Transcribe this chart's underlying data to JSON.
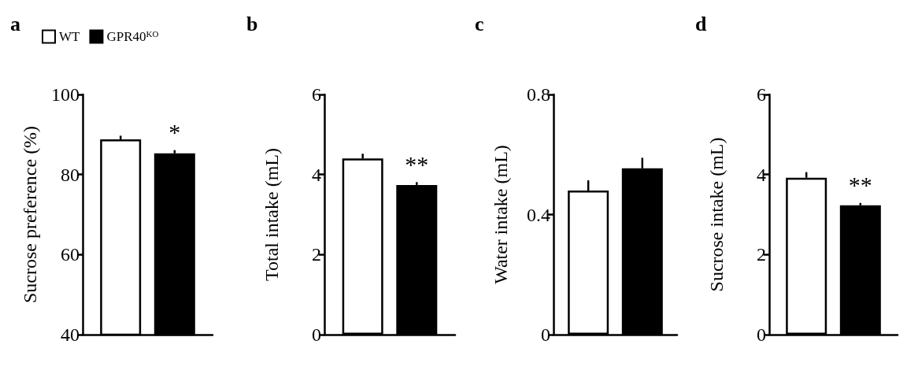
{
  "chart_data": [
    {
      "type": "bar",
      "title": "a",
      "ylabel": "Sucrose preference (%)",
      "categories": [
        null
      ],
      "ylim": [
        40,
        100
      ],
      "yticks": [
        40,
        60,
        80,
        100
      ],
      "legend": "top",
      "grid": false,
      "annotations": [
        "*"
      ],
      "series": [
        {
          "name": "WT",
          "color": "#ffffff",
          "values": [
            88.8
          ],
          "errors": [
            [
              88.8,
              89.7
            ]
          ]
        },
        {
          "name": "GPR40$^{KO}$",
          "color": "#000000",
          "values": [
            85.3
          ],
          "errors": [
            [
              85.3,
              86.1
            ]
          ]
        }
      ]
    },
    {
      "type": "bar",
      "title": "b",
      "ylabel": "Total intake (mL)",
      "categories": [
        null
      ],
      "ylim": [
        0,
        6
      ],
      "yticks": [
        0,
        2,
        4,
        6
      ],
      "legend": false,
      "grid": false,
      "annotations": [
        "**"
      ],
      "series": [
        {
          "color": "#ffffff",
          "values": [
            4.4
          ],
          "errors": [
            [
              4.4,
              4.52
            ]
          ]
        },
        {
          "color": "#000000",
          "values": [
            3.74
          ],
          "errors": [
            [
              3.74,
              3.81
            ]
          ]
        }
      ]
    },
    {
      "type": "bar",
      "title": "c",
      "ylabel": "Water intake (mL)",
      "categories": [
        null
      ],
      "ylim": [
        0,
        0.8
      ],
      "yticks": [
        0,
        0.4,
        0.8
      ],
      "legend": false,
      "grid": false,
      "series": [
        {
          "color": "#ffffff",
          "values": [
            0.48
          ],
          "errors": [
            [
              0.48,
              0.514
            ]
          ]
        },
        {
          "color": "#000000",
          "values": [
            0.554
          ],
          "errors": [
            [
              0.554,
              0.589
            ]
          ]
        }
      ]
    },
    {
      "type": "bar",
      "title": "d",
      "ylabel": "Sucrose intake (mL)",
      "categories": [
        null
      ],
      "ylim": [
        0,
        6
      ],
      "yticks": [
        0,
        2,
        4,
        6
      ],
      "legend": false,
      "grid": false,
      "annotations": [
        "**"
      ],
      "series": [
        {
          "color": "#ffffff",
          "values": [
            3.92
          ],
          "errors": [
            [
              3.92,
              4.06
            ]
          ]
        },
        {
          "color": "#000000",
          "values": [
            3.23
          ],
          "errors": [
            [
              3.23,
              3.29
            ]
          ]
        }
      ]
    }
  ]
}
